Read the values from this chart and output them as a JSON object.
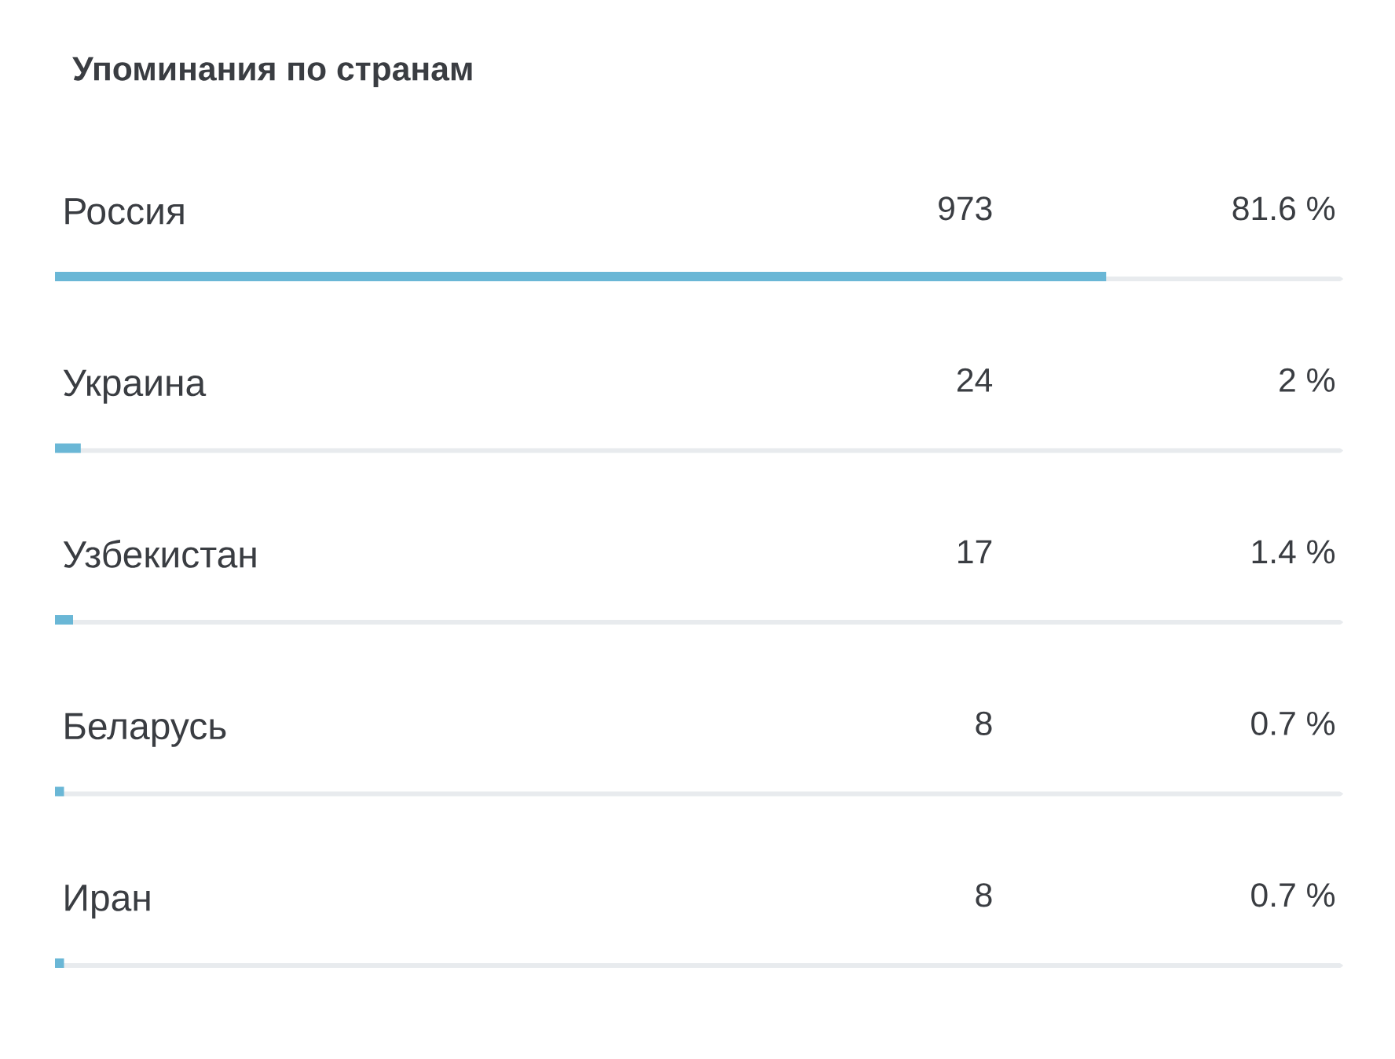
{
  "chart_data": {
    "type": "bar",
    "orientation": "horizontal",
    "title": "Упоминания по странам",
    "categories": [
      "Россия",
      "Украина",
      "Узбекистан",
      "Беларусь",
      "Иран"
    ],
    "values": [
      81.6,
      2,
      1.4,
      0.7,
      0.7
    ],
    "value_labels": [
      "81.6 %",
      "2 %",
      "1.4 %",
      "0.7 %",
      "0.7 %"
    ],
    "color": "#6ab7d6",
    "xlim": [
      0,
      100
    ],
    "annotations": [
      "973",
      "24",
      "17",
      "8",
      "8"
    ]
  }
}
